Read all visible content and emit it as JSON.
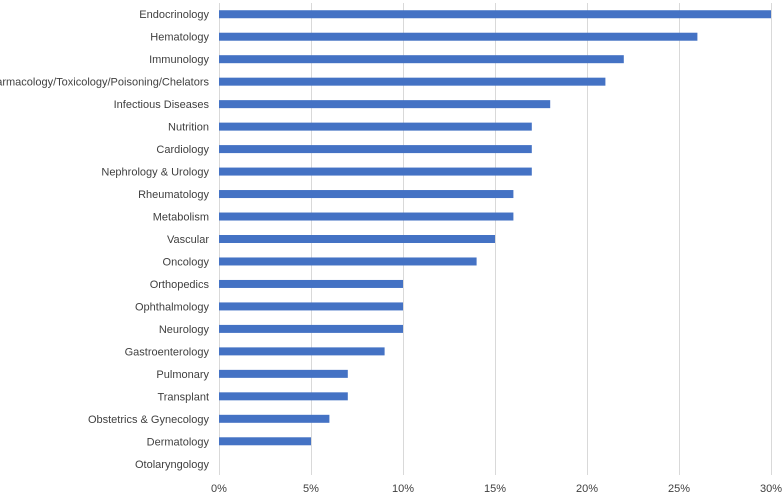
{
  "chart_data": {
    "type": "bar",
    "orientation": "horizontal",
    "categories": [
      "Endocrinology",
      "Hematology",
      "Immunology",
      "Pharmacology/Toxicology/Poisoning/Chelators",
      "Infectious Diseases",
      "Nutrition",
      "Cardiology",
      "Nephrology & Urology",
      "Rheumatology",
      "Metabolism",
      "Vascular",
      "Oncology",
      "Orthopedics",
      "Ophthalmology",
      "Neurology",
      "Gastroenterology",
      "Pulmonary",
      "Transplant",
      "Obstetrics & Gynecology",
      "Dermatology",
      "Otolaryngology"
    ],
    "values": [
      30,
      26,
      22,
      21,
      18,
      17,
      17,
      17,
      16,
      16,
      15,
      14,
      10,
      10,
      10,
      9,
      7,
      7,
      6,
      5,
      0
    ],
    "xlim": [
      0,
      30
    ],
    "xticks": [
      0,
      5,
      10,
      15,
      20,
      25,
      30
    ],
    "xtick_labels": [
      "0%",
      "5%",
      "10%",
      "15%",
      "20%",
      "25%",
      "30%"
    ],
    "title": "",
    "xlabel": "",
    "ylabel": "",
    "grid": "vertical",
    "legend": "none",
    "bar_color": "#4472c4"
  }
}
